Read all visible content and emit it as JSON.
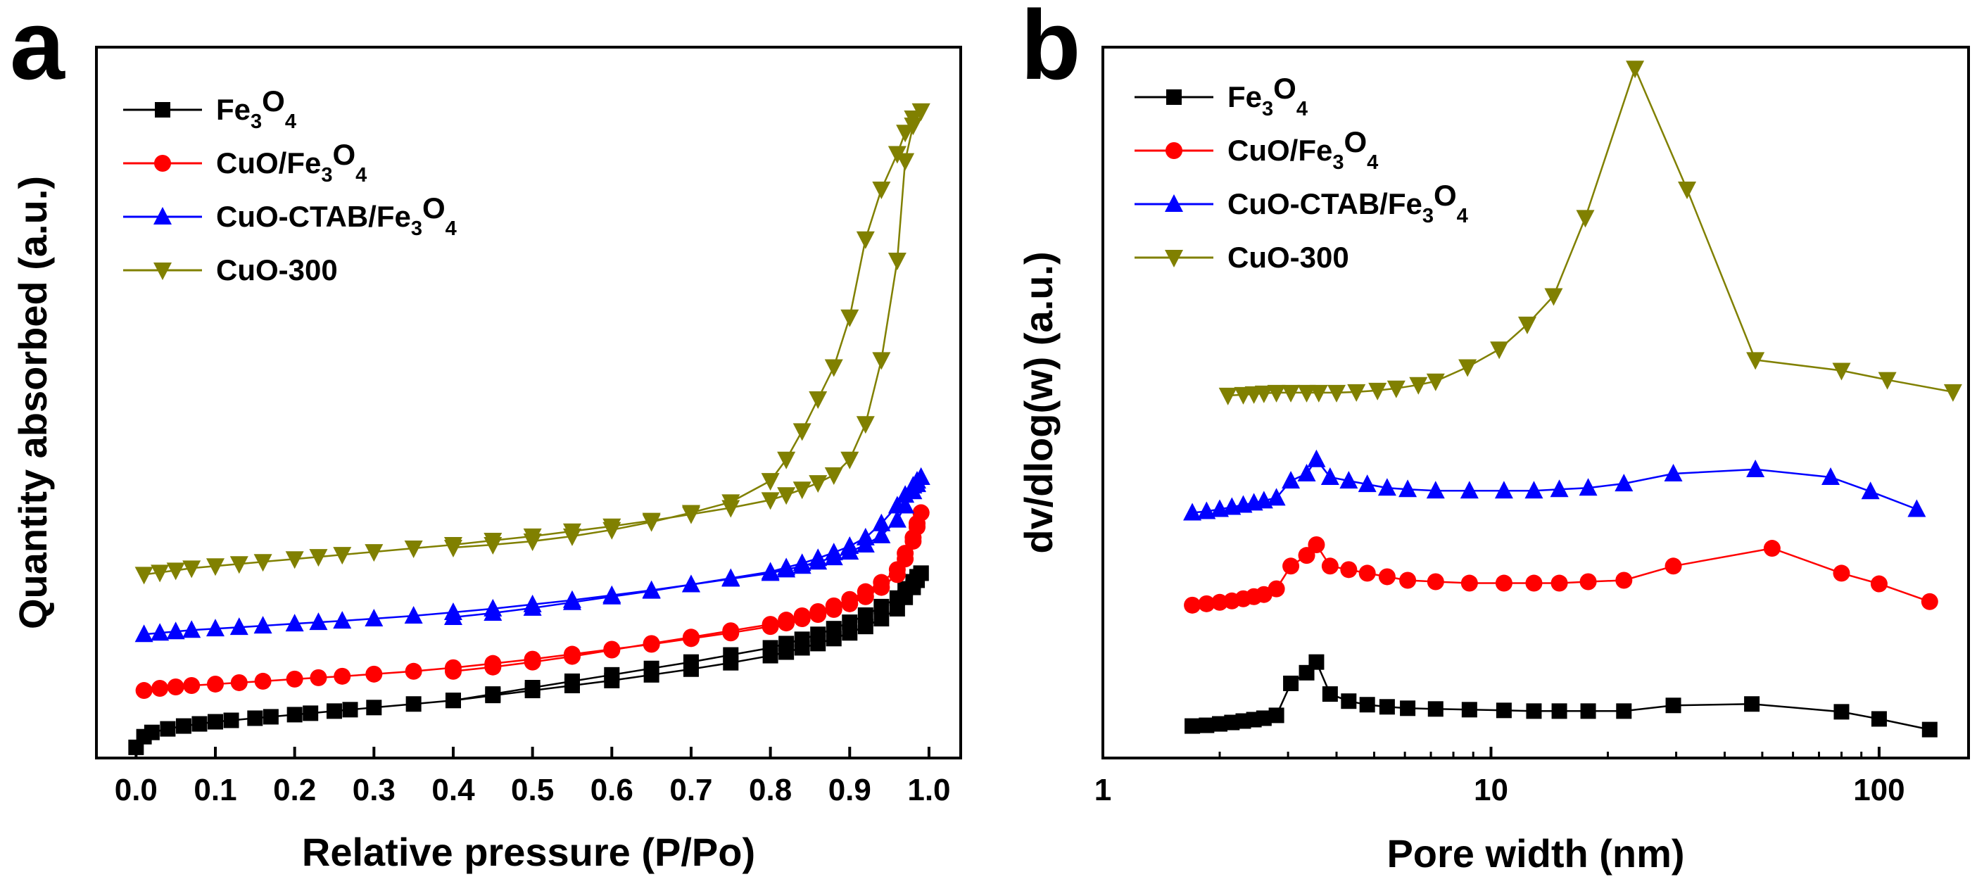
{
  "chart_data": [
    {
      "panel_label": "a",
      "type": "line",
      "xlabel": "Relative pressure (P/Po)",
      "ylabel": "Quantity absorbed (a.u.)",
      "xlim": [
        -0.05,
        1.04
      ],
      "ylim": [
        0,
        100
      ],
      "x_ticks": [
        "0.0",
        "0.1",
        "0.2",
        "0.3",
        "0.4",
        "0.5",
        "0.6",
        "0.7",
        "0.8",
        "0.9",
        "1.0"
      ],
      "y_ticks": [],
      "grid": false,
      "legend_position": "top-left",
      "series": [
        {
          "name": "Fe3O4",
          "legend": {
            "base": "Fe",
            "sub1": "3",
            "mid": "O",
            "sub2": "4",
            "tail": ""
          },
          "color": "#000000",
          "marker": "square",
          "x": [
            0.0,
            0.01,
            0.02,
            0.04,
            0.06,
            0.08,
            0.1,
            0.12,
            0.15,
            0.17,
            0.2,
            0.22,
            0.25,
            0.27,
            0.3,
            0.35,
            0.4,
            0.45,
            0.5,
            0.55,
            0.6,
            0.65,
            0.7,
            0.75,
            0.8,
            0.82,
            0.84,
            0.86,
            0.88,
            0.9,
            0.92,
            0.94,
            0.96,
            0.97,
            0.98,
            0.985,
            0.99,
            0.99,
            0.985,
            0.98,
            0.97,
            0.96,
            0.94,
            0.92,
            0.9,
            0.88,
            0.86,
            0.84,
            0.82,
            0.8,
            0.75,
            0.7,
            0.65,
            0.6,
            0.55,
            0.5,
            0.45,
            0.4
          ],
          "y": [
            1.5,
            3,
            3.6,
            4.1,
            4.5,
            4.8,
            5.1,
            5.3,
            5.6,
            5.8,
            6.1,
            6.3,
            6.6,
            6.8,
            7.1,
            7.6,
            8.1,
            8.8,
            9.5,
            10.2,
            10.9,
            11.7,
            12.5,
            13.4,
            14.4,
            14.9,
            15.5,
            16.1,
            16.8,
            17.6,
            18.5,
            19.6,
            21,
            22.6,
            24,
            25,
            26,
            26,
            25.5,
            24.8,
            23.8,
            22.5,
            21.3,
            20.1,
            19.1,
            18.2,
            17.4,
            16.7,
            16.1,
            15.5,
            14.5,
            13.5,
            12.6,
            11.7,
            10.8,
            9.9,
            9,
            8.1
          ]
        },
        {
          "name": "CuO/Fe3O4",
          "legend": {
            "base": "CuO/Fe",
            "sub1": "3",
            "mid": "O",
            "sub2": "4",
            "tail": ""
          },
          "color": "#ff0000",
          "marker": "circle",
          "x": [
            0.01,
            0.03,
            0.05,
            0.07,
            0.1,
            0.13,
            0.16,
            0.2,
            0.23,
            0.26,
            0.3,
            0.35,
            0.4,
            0.45,
            0.5,
            0.55,
            0.6,
            0.65,
            0.7,
            0.75,
            0.8,
            0.82,
            0.84,
            0.86,
            0.88,
            0.9,
            0.92,
            0.94,
            0.96,
            0.97,
            0.98,
            0.985,
            0.99,
            0.99,
            0.985,
            0.98,
            0.97,
            0.96,
            0.94,
            0.92,
            0.9,
            0.88,
            0.86,
            0.84,
            0.82,
            0.8,
            0.75,
            0.7,
            0.65,
            0.6,
            0.55,
            0.5,
            0.45,
            0.4
          ],
          "y": [
            9.5,
            9.8,
            10,
            10.2,
            10.4,
            10.6,
            10.8,
            11.1,
            11.3,
            11.5,
            11.8,
            12.2,
            12.7,
            13.3,
            13.9,
            14.6,
            15.3,
            16,
            16.8,
            17.6,
            18.5,
            19,
            19.6,
            20.2,
            20.9,
            21.7,
            22.7,
            24,
            25.8,
            28,
            30.5,
            32.5,
            34.5,
            34.5,
            33,
            31,
            28.8,
            26.5,
            24.7,
            23.4,
            22.3,
            21.4,
            20.6,
            20,
            19.4,
            18.8,
            17.9,
            17,
            16.1,
            15.2,
            14.3,
            13.5,
            12.8,
            12.2
          ]
        },
        {
          "name": "CuO-CTAB/Fe3O4",
          "legend": {
            "base": "CuO-CTAB/Fe",
            "sub1": "3",
            "mid": "O",
            "sub2": "4",
            "tail": ""
          },
          "color": "#0000ff",
          "marker": "triangle-up",
          "x": [
            0.01,
            0.03,
            0.05,
            0.07,
            0.1,
            0.13,
            0.16,
            0.2,
            0.23,
            0.26,
            0.3,
            0.35,
            0.4,
            0.45,
            0.5,
            0.55,
            0.6,
            0.65,
            0.7,
            0.75,
            0.8,
            0.82,
            0.84,
            0.86,
            0.88,
            0.9,
            0.92,
            0.94,
            0.96,
            0.97,
            0.98,
            0.985,
            0.99,
            0.99,
            0.985,
            0.98,
            0.97,
            0.96,
            0.94,
            0.92,
            0.9,
            0.88,
            0.86,
            0.84,
            0.82,
            0.8,
            0.75,
            0.7,
            0.65,
            0.6,
            0.55,
            0.5,
            0.45,
            0.4
          ],
          "y": [
            17.4,
            17.6,
            17.8,
            18,
            18.2,
            18.4,
            18.6,
            18.9,
            19.1,
            19.3,
            19.6,
            20,
            20.5,
            21,
            21.6,
            22.2,
            22.9,
            23.6,
            24.4,
            25.2,
            26,
            26.5,
            27,
            27.6,
            28.2,
            29,
            30,
            31.3,
            33.5,
            35.5,
            37.5,
            38.5,
            39.5,
            39.5,
            39,
            38.3,
            37,
            35.5,
            33,
            31,
            29.8,
            28.9,
            28.1,
            27.4,
            26.8,
            26.2,
            25.3,
            24.4,
            23.5,
            22.7,
            21.9,
            21.1,
            20.4,
            19.8
          ]
        },
        {
          "name": "CuO-300",
          "legend": {
            "base": "CuO-300",
            "sub1": "",
            "mid": "",
            "sub2": "",
            "tail": ""
          },
          "color": "#808000",
          "marker": "triangle-down",
          "x": [
            0.01,
            0.03,
            0.05,
            0.07,
            0.1,
            0.13,
            0.16,
            0.2,
            0.23,
            0.26,
            0.3,
            0.35,
            0.4,
            0.45,
            0.5,
            0.55,
            0.6,
            0.65,
            0.7,
            0.75,
            0.8,
            0.82,
            0.84,
            0.86,
            0.88,
            0.9,
            0.92,
            0.94,
            0.96,
            0.97,
            0.98,
            0.99,
            0.99,
            0.98,
            0.97,
            0.96,
            0.94,
            0.92,
            0.9,
            0.88,
            0.86,
            0.84,
            0.82,
            0.8,
            0.75,
            0.7,
            0.65,
            0.6,
            0.55,
            0.5,
            0.45,
            0.4
          ],
          "y": [
            25.8,
            26.1,
            26.4,
            26.7,
            27,
            27.3,
            27.6,
            28,
            28.3,
            28.6,
            29,
            29.5,
            30,
            30.6,
            31.2,
            31.9,
            32.6,
            33.4,
            34.3,
            35.2,
            36.3,
            37,
            37.8,
            38.7,
            39.8,
            42,
            47,
            56,
            70,
            84,
            89,
            91,
            91,
            90,
            88,
            85,
            80,
            73,
            62,
            55,
            50.5,
            46,
            42,
            39,
            36,
            34.5,
            33.2,
            32.1,
            31.2,
            30.5,
            30,
            29.6
          ]
        }
      ]
    },
    {
      "panel_label": "b",
      "type": "line",
      "x_scale": "log",
      "xlabel": "Pore width (nm)",
      "ylabel": "dv/dlog(w) (a.u.)",
      "xlim": [
        1,
        170
      ],
      "ylim": [
        0,
        100
      ],
      "x_ticks": [
        1,
        10,
        100
      ],
      "x_tick_labels": [
        "1",
        "10",
        "100"
      ],
      "y_ticks": [],
      "grid": false,
      "legend_position": "top-left",
      "series": [
        {
          "name": "Fe3O4",
          "legend": {
            "base": "Fe",
            "sub1": "3",
            "mid": "O",
            "sub2": "4",
            "tail": ""
          },
          "color": "#000000",
          "marker": "square",
          "x": [
            1.7,
            1.85,
            2.0,
            2.15,
            2.3,
            2.45,
            2.6,
            2.8,
            3.05,
            3.35,
            3.55,
            3.85,
            4.3,
            4.8,
            5.4,
            6.1,
            7.2,
            8.8,
            10.8,
            12.9,
            15.0,
            17.8,
            22.0,
            29.5,
            47.0,
            80.0,
            100.0,
            135.0
          ],
          "y": [
            4.5,
            4.6,
            4.8,
            5.0,
            5.2,
            5.4,
            5.6,
            6.0,
            10.5,
            12,
            13.5,
            9,
            8,
            7.5,
            7.2,
            7.0,
            6.9,
            6.8,
            6.7,
            6.6,
            6.6,
            6.6,
            6.6,
            7.4,
            7.6,
            6.5,
            5.5,
            4.0
          ]
        },
        {
          "name": "CuO/Fe3O4",
          "legend": {
            "base": "CuO/Fe",
            "sub1": "3",
            "mid": "O",
            "sub2": "4",
            "tail": ""
          },
          "color": "#ff0000",
          "marker": "circle",
          "x": [
            1.7,
            1.85,
            2.0,
            2.15,
            2.3,
            2.45,
            2.6,
            2.8,
            3.05,
            3.35,
            3.55,
            3.85,
            4.3,
            4.8,
            5.4,
            6.1,
            7.2,
            8.8,
            10.8,
            12.9,
            15.0,
            17.8,
            22.0,
            29.5,
            53.0,
            80.0,
            100.0,
            135.0
          ],
          "y": [
            21.5,
            21.7,
            21.9,
            22.1,
            22.4,
            22.7,
            23,
            23.8,
            27,
            28.5,
            30,
            27,
            26.5,
            26,
            25.5,
            25,
            24.8,
            24.6,
            24.6,
            24.6,
            24.6,
            24.8,
            25,
            27,
            29.5,
            26,
            24.5,
            22
          ]
        },
        {
          "name": "CuO-CTAB/Fe3O4",
          "legend": {
            "base": "CuO-CTAB/Fe",
            "sub1": "3",
            "mid": "O",
            "sub2": "4",
            "tail": ""
          },
          "color": "#0000ff",
          "marker": "triangle-up",
          "x": [
            1.7,
            1.85,
            2.0,
            2.15,
            2.3,
            2.45,
            2.6,
            2.8,
            3.05,
            3.35,
            3.55,
            3.85,
            4.3,
            4.8,
            5.4,
            6.1,
            7.2,
            8.8,
            10.8,
            12.9,
            15.0,
            17.8,
            22.0,
            29.5,
            48.0,
            75.0,
            95.0,
            125.0
          ],
          "y": [
            34.5,
            34.7,
            35,
            35.3,
            35.6,
            35.9,
            36.2,
            36.6,
            39,
            40,
            42,
            39.5,
            39,
            38.5,
            38,
            37.8,
            37.6,
            37.6,
            37.6,
            37.6,
            37.8,
            38,
            38.6,
            40,
            40.6,
            39.5,
            37.5,
            35
          ]
        },
        {
          "name": "CuO-300",
          "legend": {
            "base": "CuO-300",
            "sub1": "",
            "mid": "",
            "sub2": "",
            "tail": ""
          },
          "color": "#808000",
          "marker": "triangle-down",
          "x": [
            2.1,
            2.3,
            2.45,
            2.6,
            2.8,
            3.05,
            3.35,
            3.6,
            4.0,
            4.5,
            5.1,
            5.7,
            6.5,
            7.2,
            8.7,
            10.5,
            12.4,
            14.5,
            17.5,
            23.5,
            32.0,
            48.0,
            80.0,
            105.0,
            155.0
          ],
          "y": [
            51,
            51.1,
            51.2,
            51.3,
            51.4,
            51.4,
            51.4,
            51.4,
            51.4,
            51.5,
            51.7,
            52,
            52.5,
            53,
            55,
            57.5,
            61,
            65,
            76,
            97,
            80,
            56,
            54.5,
            53.2,
            51.5
          ]
        }
      ]
    }
  ]
}
